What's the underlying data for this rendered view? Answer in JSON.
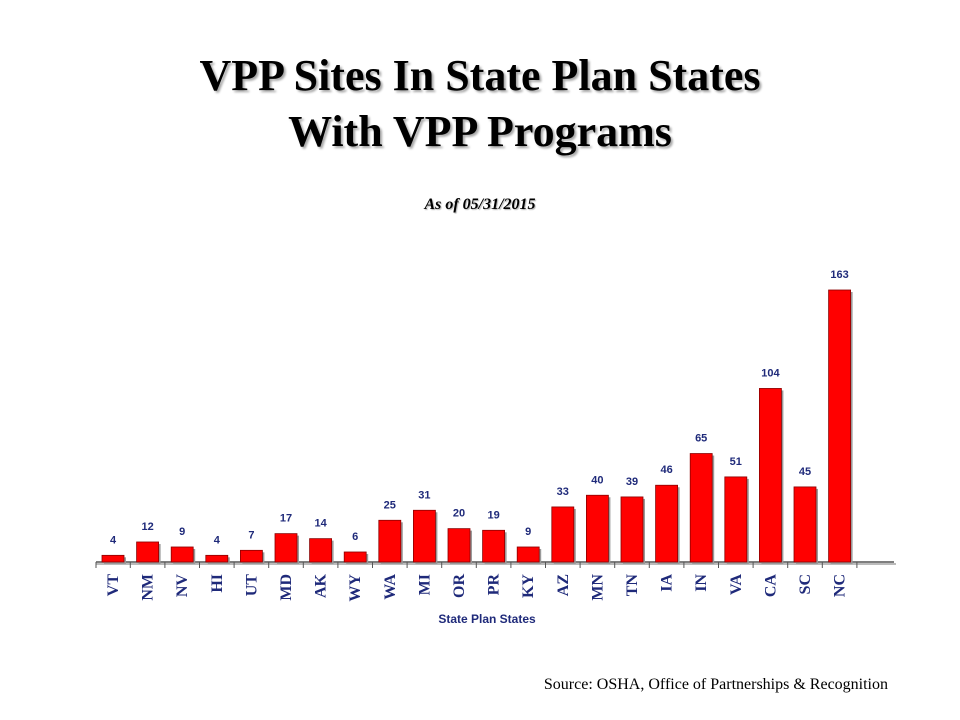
{
  "header": {
    "title_line1": "VPP Sites In State Plan States",
    "title_line2": "With VPP Programs",
    "subtitle": "As of 05/31/2015"
  },
  "footer": {
    "source": "Source:  OSHA, Office of Partnerships & Recognition"
  },
  "chart_data": {
    "type": "bar",
    "title": "VPP Sites In State Plan States With VPP Programs",
    "subtitle": "As of 05/31/2015",
    "xlabel": "State Plan States",
    "ylabel": "",
    "categories": [
      "VT",
      "NM",
      "NV",
      "HI",
      "UT",
      "MD",
      "AK",
      "WY",
      "WA",
      "MI",
      "OR",
      "PR",
      "KY",
      "AZ",
      "MN",
      "TN",
      "IA",
      "IN",
      "VA",
      "CA",
      "SC",
      "NC"
    ],
    "values": [
      4,
      12,
      9,
      4,
      7,
      17,
      14,
      6,
      25,
      31,
      20,
      19,
      9,
      33,
      40,
      39,
      46,
      65,
      51,
      104,
      45,
      163
    ],
    "ylim": [
      0,
      170
    ],
    "grid": false,
    "legend": "none",
    "bar_color": "#ff0000",
    "bar_edge_color": "#8b0000",
    "label_color": "#1f2a7a"
  }
}
